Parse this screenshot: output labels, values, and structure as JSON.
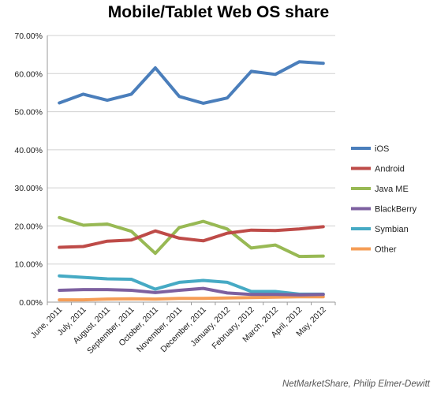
{
  "chart_data": {
    "type": "line",
    "title": "Mobile/Tablet Web OS share",
    "xlabel": "",
    "ylabel": "",
    "categories": [
      "June, 2011",
      "July, 2011",
      "August, 2011",
      "September, 2011",
      "October, 2011",
      "November, 2011",
      "December, 2011",
      "January, 2012",
      "February, 2012",
      "March, 2012",
      "April, 2012",
      "May, 2012"
    ],
    "ylim": [
      0,
      70
    ],
    "yticks": [
      "0.00%",
      "10.00%",
      "20.00%",
      "30.00%",
      "40.00%",
      "50.00%",
      "60.00%",
      "70.00%"
    ],
    "grid": true,
    "legend_position": "right",
    "series": [
      {
        "name": "iOS",
        "color": "#4a7ebb",
        "values": [
          52.3,
          54.6,
          53.0,
          54.6,
          61.5,
          54.0,
          52.2,
          53.6,
          60.6,
          59.8,
          63.1,
          62.7
        ]
      },
      {
        "name": "Android",
        "color": "#be4b48",
        "values": [
          14.4,
          14.6,
          16.0,
          16.3,
          18.7,
          16.8,
          16.1,
          18.1,
          18.9,
          18.8,
          19.2,
          19.8
        ]
      },
      {
        "name": "Java ME",
        "color": "#98b954",
        "values": [
          22.2,
          20.2,
          20.5,
          18.6,
          12.8,
          19.6,
          21.2,
          19.2,
          14.2,
          15.0,
          12.0,
          12.1
        ]
      },
      {
        "name": "BlackBerry",
        "color": "#7d60a0",
        "values": [
          3.1,
          3.3,
          3.3,
          3.1,
          2.5,
          3.1,
          3.6,
          2.4,
          2.0,
          2.0,
          1.9,
          2.0
        ]
      },
      {
        "name": "Symbian",
        "color": "#46aac4",
        "values": [
          6.9,
          6.5,
          6.1,
          6.0,
          3.4,
          5.2,
          5.7,
          5.2,
          2.8,
          2.8,
          2.1,
          2.1
        ]
      },
      {
        "name": "Other",
        "color": "#f59d56",
        "values": [
          0.6,
          0.6,
          0.8,
          0.9,
          0.8,
          1.0,
          1.0,
          1.1,
          1.2,
          1.3,
          1.4,
          1.4
        ]
      }
    ]
  },
  "source": "NetMarketShare, Philip Elmer-Dewitt"
}
